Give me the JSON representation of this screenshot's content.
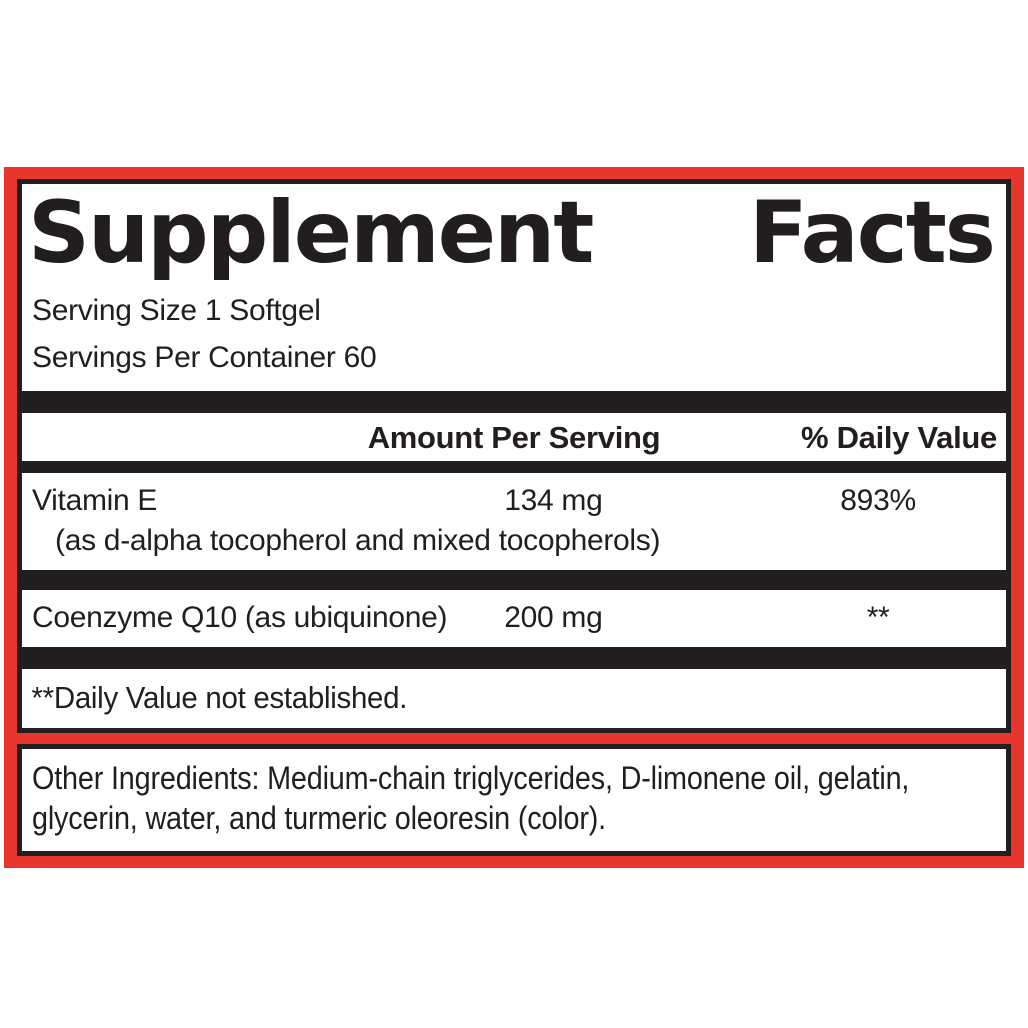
{
  "colors": {
    "accent_red": "#e8362e",
    "ink_black": "#221e1f",
    "background": "#ffffff"
  },
  "label": {
    "title": {
      "word1": "Supplement",
      "word2": "Facts"
    },
    "serving_size": "Serving Size 1 Softgel",
    "servings_per_container": "Servings Per Container 60",
    "columns": {
      "amount_header": "Amount Per Serving",
      "daily_value_header": "% Daily Value"
    },
    "rows": [
      {
        "name": "Vitamin E",
        "detail": "(as d-alpha tocopherol and mixed tocopherols)",
        "amount": "134 mg",
        "daily_value": "893%"
      },
      {
        "name": "Coenzyme Q10 (as ubiquinone)",
        "amount": "200 mg",
        "daily_value": "**"
      }
    ],
    "footnote": "**Daily Value not established.",
    "other_ingredients": "Other Ingredients: Medium-chain triglycerides, D-limonene oil, gelatin, glycerin, water, and turmeric oleoresin (color)."
  }
}
